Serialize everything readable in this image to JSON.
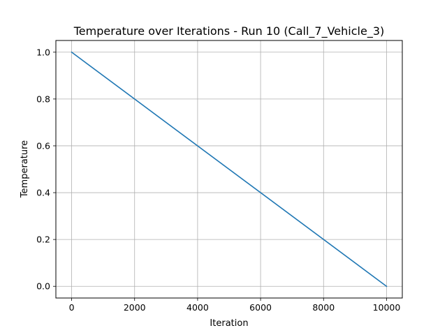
{
  "chart_data": {
    "type": "line",
    "title": "Temperature over Iterations - Run 10 (Call_7_Vehicle_3)",
    "xlabel": "Iteration",
    "ylabel": "Temperature",
    "xlim": [
      -500,
      10500
    ],
    "ylim": [
      -0.05,
      1.05
    ],
    "xticks": [
      0,
      2000,
      4000,
      6000,
      8000,
      10000
    ],
    "xtick_labels": [
      "0",
      "2000",
      "4000",
      "6000",
      "8000",
      "10000"
    ],
    "yticks": [
      0.0,
      0.2,
      0.4,
      0.6,
      0.8,
      1.0
    ],
    "ytick_labels": [
      "0.0",
      "0.2",
      "0.4",
      "0.6",
      "0.8",
      "1.0"
    ],
    "grid": true,
    "series": [
      {
        "name": "Temperature",
        "color": "#1f77b4",
        "x": [
          0,
          10000
        ],
        "y": [
          1.0,
          0.0
        ]
      }
    ]
  }
}
